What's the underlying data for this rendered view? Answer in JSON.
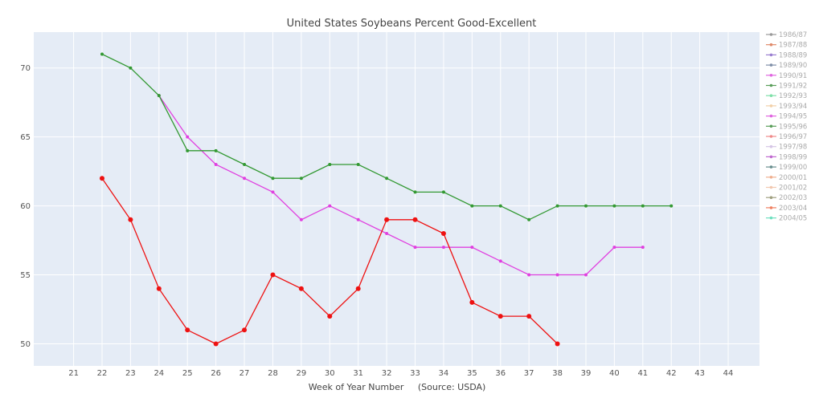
{
  "chart_data": {
    "type": "line",
    "title": "United States Soybeans Percent Good-Excellent",
    "xlabel": "Week of Year Number     (Source: USDA)",
    "ylabel": "",
    "xlim": [
      19.6,
      45.1
    ],
    "ylim": [
      48.4,
      72.6
    ],
    "x_ticks": [
      21,
      22,
      23,
      24,
      25,
      26,
      27,
      28,
      29,
      30,
      31,
      32,
      33,
      34,
      35,
      36,
      37,
      38,
      39,
      40,
      41,
      42,
      43,
      44
    ],
    "y_ticks": [
      50,
      55,
      60,
      65,
      70
    ],
    "grid": true,
    "plot_background": "#e5ecf6",
    "legend_position": "right",
    "legend_entries": [
      {
        "label": "1986/87",
        "color": "#9a9a9a"
      },
      {
        "label": "1987/88",
        "color": "#e08a6a"
      },
      {
        "label": "1988/89",
        "color": "#9a7fd1"
      },
      {
        "label": "1989/90",
        "color": "#7f8fa8"
      },
      {
        "label": "1990/91",
        "color": "#e066e0"
      },
      {
        "label": "1991/92",
        "color": "#5a9e5a"
      },
      {
        "label": "1992/93",
        "color": "#7fe0a8"
      },
      {
        "label": "1993/94",
        "color": "#f2d0a8"
      },
      {
        "label": "1994/95",
        "color": "#e066e0"
      },
      {
        "label": "1995/96",
        "color": "#5a9e5a"
      },
      {
        "label": "1996/97",
        "color": "#f08a8a"
      },
      {
        "label": "1997/98",
        "color": "#d6c6e6"
      },
      {
        "label": "1998/99",
        "color": "#c06ad0"
      },
      {
        "label": "1999/00",
        "color": "#6a8f8f"
      },
      {
        "label": "2000/01",
        "color": "#f0b090"
      },
      {
        "label": "2001/02",
        "color": "#f2c8b0"
      },
      {
        "label": "2002/03",
        "color": "#a0a080"
      },
      {
        "label": "2003/04",
        "color": "#f08060"
      },
      {
        "label": "2004/05",
        "color": "#70e0c0"
      }
    ],
    "series": [
      {
        "color": "#e040e0",
        "marker_size": 2,
        "x": [
          24,
          25,
          26,
          27,
          28,
          29,
          30,
          31,
          32,
          33,
          34,
          35,
          36,
          37,
          38,
          39,
          40,
          41
        ],
        "values": [
          68,
          65,
          63,
          62,
          61,
          59,
          60,
          59,
          58,
          57,
          57,
          57,
          56,
          55,
          55,
          55,
          57,
          57
        ]
      },
      {
        "color": "#339933",
        "marker_size": 2,
        "x": [
          22,
          23,
          24,
          25,
          26,
          27,
          28,
          29,
          30,
          31,
          32,
          33,
          34,
          35,
          36,
          37,
          38,
          39,
          40,
          41,
          42
        ],
        "values": [
          71,
          70,
          68,
          64,
          64,
          63,
          62,
          62,
          63,
          63,
          62,
          61,
          61,
          60,
          60,
          59,
          60,
          60,
          60,
          60,
          60
        ]
      },
      {
        "color": "#ee1111",
        "marker_size": 3,
        "x": [
          22,
          23,
          24,
          25,
          26,
          27,
          28,
          29,
          30,
          31,
          32,
          33,
          34,
          35,
          36,
          37,
          38
        ],
        "values": [
          62,
          59,
          54,
          51,
          50,
          51,
          55,
          54,
          52,
          54,
          59,
          59,
          58,
          53,
          52,
          52,
          50
        ]
      }
    ]
  }
}
